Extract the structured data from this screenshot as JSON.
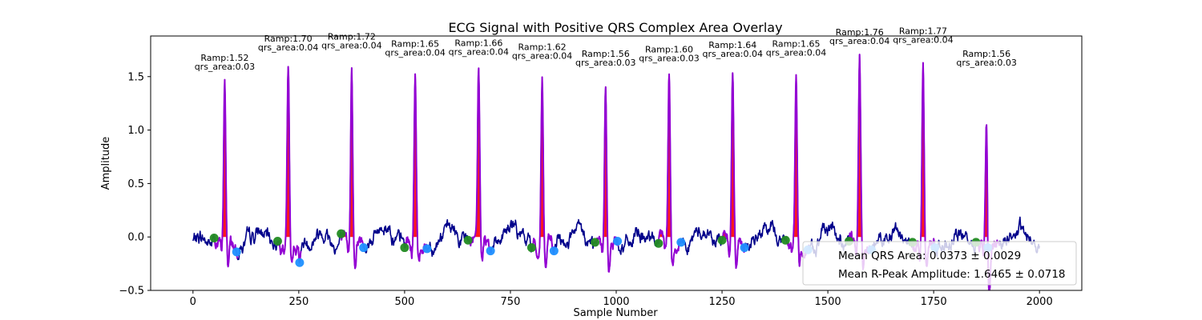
{
  "chart_data": {
    "type": "line",
    "title": "ECG Signal with Positive QRS Complex Area Overlay",
    "xlabel": "Sample Number",
    "ylabel": "Amplitude",
    "xlim": [
      -100,
      2100
    ],
    "ylim": [
      -0.5,
      1.88
    ],
    "xticks": [
      0,
      250,
      500,
      750,
      1000,
      1250,
      1500,
      1750,
      2000
    ],
    "yticks": [
      -0.5,
      0.0,
      0.5,
      1.0,
      1.5
    ],
    "xtick_labels": [
      "0",
      "250",
      "500",
      "750",
      "1000",
      "1250",
      "1500",
      "1750",
      "2000"
    ],
    "ytick_labels": [
      "−0.5",
      "0.0",
      "0.5",
      "1.0",
      "1.5"
    ],
    "grid": false,
    "colors": {
      "ecg": "#00008b",
      "qrs_line": "#9400d3",
      "qrs_fill": "#ff0000",
      "onset_marker": "#228b22",
      "offset_marker": "#1e90ff"
    },
    "beats": [
      {
        "r_sample": 75,
        "r_amp": 1.52,
        "qrs_area": 0.03,
        "label_ramp": "Ramp:1.52",
        "label_area": "qrs_area:0.03",
        "onset_sample": 50,
        "onset_amp": -0.01,
        "offset_sample": 103,
        "offset_amp": -0.14
      },
      {
        "r_sample": 225,
        "r_amp": 1.7,
        "qrs_area": 0.04,
        "label_ramp": "Ramp:1.70",
        "label_area": "qrs_area:0.04",
        "onset_sample": 200,
        "onset_amp": -0.04,
        "offset_sample": 252,
        "offset_amp": -0.24
      },
      {
        "r_sample": 375,
        "r_amp": 1.72,
        "qrs_area": 0.04,
        "label_ramp": "Ramp:1.72",
        "label_area": "qrs_area:0.04",
        "onset_sample": 350,
        "onset_amp": 0.03,
        "offset_sample": 403,
        "offset_amp": -0.1
      },
      {
        "r_sample": 525,
        "r_amp": 1.65,
        "qrs_area": 0.04,
        "label_ramp": "Ramp:1.65",
        "label_area": "qrs_area:0.04",
        "onset_sample": 500,
        "onset_amp": -0.1,
        "offset_sample": 553,
        "offset_amp": -0.11
      },
      {
        "r_sample": 675,
        "r_amp": 1.66,
        "qrs_area": 0.04,
        "label_ramp": "Ramp:1.66",
        "label_area": "qrs_area:0.04",
        "onset_sample": 650,
        "onset_amp": -0.03,
        "offset_sample": 703,
        "offset_amp": -0.13
      },
      {
        "r_sample": 825,
        "r_amp": 1.62,
        "qrs_area": 0.04,
        "label_ramp": "Ramp:1.62",
        "label_area": "qrs_area:0.04",
        "onset_sample": 800,
        "onset_amp": -0.1,
        "offset_sample": 853,
        "offset_amp": -0.13
      },
      {
        "r_sample": 975,
        "r_amp": 1.56,
        "qrs_area": 0.03,
        "label_ramp": "Ramp:1.56",
        "label_area": "qrs_area:0.03",
        "onset_sample": 950,
        "onset_amp": -0.05,
        "offset_sample": 1003,
        "offset_amp": -0.04
      },
      {
        "r_sample": 1125,
        "r_amp": 1.6,
        "qrs_area": 0.03,
        "label_ramp": "Ramp:1.60",
        "label_area": "qrs_area:0.03",
        "onset_sample": 1100,
        "onset_amp": -0.06,
        "offset_sample": 1153,
        "offset_amp": -0.05
      },
      {
        "r_sample": 1275,
        "r_amp": 1.64,
        "qrs_area": 0.04,
        "label_ramp": "Ramp:1.64",
        "label_area": "qrs_area:0.04",
        "onset_sample": 1250,
        "onset_amp": -0.03,
        "offset_sample": 1303,
        "offset_amp": -0.1
      },
      {
        "r_sample": 1425,
        "r_amp": 1.65,
        "qrs_area": 0.04,
        "label_ramp": "Ramp:1.65",
        "label_area": "qrs_area:0.04",
        "onset_sample": 1400,
        "onset_amp": -0.03,
        "offset_sample": 1453,
        "offset_amp": -0.12
      },
      {
        "r_sample": 1575,
        "r_amp": 1.76,
        "qrs_area": 0.04,
        "label_ramp": "Ramp:1.76",
        "label_area": "qrs_area:0.04",
        "onset_sample": 1550,
        "onset_amp": -0.04,
        "offset_sample": 1603,
        "offset_amp": -0.12
      },
      {
        "r_sample": 1725,
        "r_amp": 1.77,
        "qrs_area": 0.04,
        "label_ramp": "Ramp:1.77",
        "label_area": "qrs_area:0.04",
        "onset_sample": 1700,
        "onset_amp": -0.05,
        "offset_sample": 1753,
        "offset_amp": -0.1
      },
      {
        "r_sample": 1875,
        "r_amp": 1.56,
        "qrs_area": 0.03,
        "label_ramp": "Ramp:1.56",
        "label_area": "qrs_area:0.03",
        "onset_sample": 1850,
        "onset_amp": -0.05,
        "offset_sample": 1878,
        "offset_amp": -0.1
      }
    ],
    "legend": {
      "placement": "lower-right",
      "entries": [
        "Mean QRS Area: 0.0373 ± 0.0029",
        "Mean R-Peak Amplitude: 1.6465 ± 0.0718"
      ]
    }
  }
}
